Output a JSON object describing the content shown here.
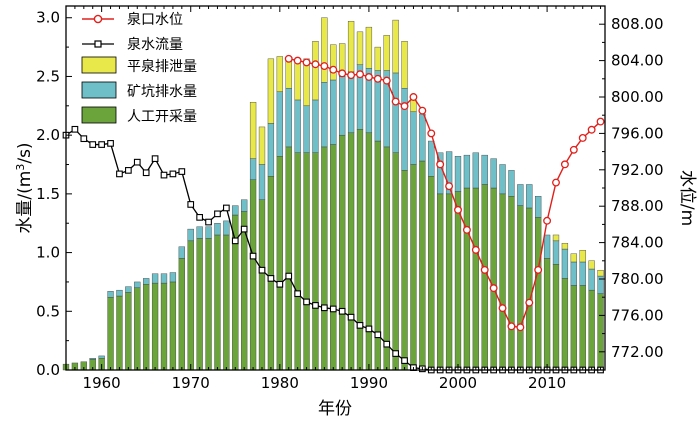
{
  "chart_data": {
    "type": "bar+line",
    "xlabel": "年份",
    "ylabel": "水量/(m³/s)",
    "ylabel_parts": {
      "pre": "水量/(m",
      "sup": "3",
      "post": "/s)"
    },
    "y2label": "水位/m",
    "xlim": [
      1956,
      2016.5
    ],
    "ylim": [
      0,
      3.1
    ],
    "y2lim": [
      770,
      810
    ],
    "x_ticks": [
      1960,
      1970,
      1980,
      1990,
      2000,
      2010
    ],
    "x_tick_labels": [
      "1960",
      "1970",
      "1980",
      "1990",
      "2000",
      "2010"
    ],
    "y_ticks": [
      0.0,
      0.5,
      1.0,
      1.5,
      2.0,
      2.5,
      3.0
    ],
    "y_tick_labels": [
      "0.0",
      "0.5",
      "1.0",
      "1.5",
      "2.0",
      "2.5",
      "3.0"
    ],
    "y2_ticks": [
      772,
      776,
      780,
      784,
      788,
      792,
      796,
      800,
      804,
      808
    ],
    "y2_tick_labels": [
      "772.00",
      "776.00",
      "780.00",
      "784.00",
      "788.00",
      "792.00",
      "796.00",
      "800.00",
      "804.00",
      "808.00"
    ],
    "legend": [
      {
        "name": "泉口水位",
        "kind": "line-circle",
        "color": "#e0201b"
      },
      {
        "name": "泉水流量",
        "kind": "line-square",
        "color": "#000000"
      },
      {
        "name": "平泉排泄量",
        "kind": "bar",
        "color": "#e8e84a"
      },
      {
        "name": "矿坑排水量",
        "kind": "bar",
        "color": "#6fbfc9"
      },
      {
        "name": "人工开采量",
        "kind": "bar",
        "color": "#6aa43a"
      }
    ],
    "legend_position": "top-left",
    "colors": {
      "artificial": "#6aa43a",
      "mine": "#6fbfc9",
      "spring_discharge": "#e8e84a",
      "flow_line": "#000000",
      "level_line": "#e0201b"
    },
    "years": [
      1956,
      1957,
      1958,
      1959,
      1960,
      1961,
      1962,
      1963,
      1964,
      1965,
      1966,
      1967,
      1968,
      1969,
      1970,
      1971,
      1972,
      1973,
      1974,
      1975,
      1976,
      1977,
      1978,
      1979,
      1980,
      1981,
      1982,
      1983,
      1984,
      1985,
      1986,
      1987,
      1988,
      1989,
      1990,
      1991,
      1992,
      1993,
      1994,
      1995,
      1996,
      1997,
      1998,
      1999,
      2000,
      2001,
      2002,
      2003,
      2004,
      2005,
      2006,
      2007,
      2008,
      2009,
      2010,
      2011,
      2012,
      2013,
      2014,
      2015,
      2016
    ],
    "series": [
      {
        "name": "人工开采量",
        "values": [
          0.05,
          0.06,
          0.07,
          0.09,
          0.1,
          0.62,
          0.63,
          0.66,
          0.7,
          0.73,
          0.74,
          0.74,
          0.75,
          0.95,
          1.1,
          1.12,
          1.12,
          1.15,
          1.15,
          1.32,
          1.35,
          1.62,
          1.45,
          1.65,
          1.82,
          1.9,
          1.85,
          1.85,
          1.85,
          1.9,
          1.92,
          2.0,
          2.02,
          2.05,
          2.02,
          1.95,
          1.9,
          1.85,
          1.7,
          1.75,
          1.78,
          1.65,
          1.5,
          1.5,
          1.52,
          1.55,
          1.55,
          1.58,
          1.55,
          1.5,
          1.48,
          1.4,
          1.38,
          1.3,
          0.95,
          0.9,
          0.78,
          0.72,
          0.72,
          0.68,
          0.65
        ]
      },
      {
        "name": "矿坑排水量",
        "values": [
          0.0,
          0.0,
          0.0,
          0.01,
          0.02,
          0.05,
          0.05,
          0.05,
          0.05,
          0.05,
          0.08,
          0.08,
          0.08,
          0.1,
          0.1,
          0.1,
          0.1,
          0.1,
          0.12,
          0.08,
          0.1,
          0.18,
          0.3,
          0.45,
          0.55,
          0.5,
          0.45,
          0.4,
          0.45,
          0.55,
          0.55,
          0.5,
          0.52,
          0.55,
          0.55,
          0.6,
          0.65,
          0.68,
          0.7,
          0.45,
          0.4,
          0.3,
          0.35,
          0.36,
          0.3,
          0.28,
          0.3,
          0.25,
          0.25,
          0.25,
          0.22,
          0.18,
          0.2,
          0.18,
          0.2,
          0.2,
          0.25,
          0.2,
          0.2,
          0.18,
          0.15
        ]
      },
      {
        "name": "平泉排泄量",
        "values": [
          0.0,
          0.0,
          0.0,
          0.0,
          0.0,
          0.0,
          0.0,
          0.0,
          0.0,
          0.0,
          0.0,
          0.0,
          0.0,
          0.0,
          0.0,
          0.0,
          0.0,
          0.0,
          0.0,
          0.0,
          0.0,
          0.48,
          0.32,
          0.55,
          0.3,
          0.25,
          0.35,
          0.4,
          0.5,
          0.55,
          0.3,
          0.28,
          0.43,
          0.28,
          0.35,
          0.2,
          0.3,
          0.45,
          0.4,
          0.1,
          0.0,
          0.0,
          0.0,
          0.0,
          0.0,
          0.0,
          0.0,
          0.0,
          0.0,
          0.0,
          0.0,
          0.0,
          0.0,
          0.0,
          0.0,
          0.05,
          0.05,
          0.07,
          0.1,
          0.07,
          0.05
        ]
      },
      {
        "name": "泉水流量",
        "years": [
          1956,
          1957,
          1958,
          1959,
          1960,
          1961,
          1962,
          1963,
          1964,
          1965,
          1966,
          1967,
          1968,
          1969,
          1970,
          1971,
          1972,
          1973,
          1974,
          1975,
          1976,
          1977,
          1978,
          1979,
          1980,
          1981,
          1982,
          1983,
          1984,
          1985,
          1986,
          1987,
          1988,
          1989,
          1990,
          1991,
          1992,
          1993,
          1994,
          1995,
          1996,
          1997,
          1998,
          1999,
          2000,
          2001,
          2002,
          2003,
          2004,
          2005,
          2006,
          2007,
          2008,
          2009,
          2010,
          2011,
          2012,
          2013,
          2014,
          2015,
          2016
        ],
        "values": [
          2.0,
          2.05,
          1.97,
          1.92,
          1.92,
          1.93,
          1.67,
          1.7,
          1.77,
          1.68,
          1.8,
          1.66,
          1.67,
          1.69,
          1.41,
          1.3,
          1.26,
          1.33,
          1.38,
          1.1,
          1.2,
          0.97,
          0.85,
          0.78,
          0.73,
          0.8,
          0.65,
          0.58,
          0.55,
          0.53,
          0.52,
          0.5,
          0.45,
          0.38,
          0.35,
          0.3,
          0.22,
          0.14,
          0.08,
          0.02,
          0.01,
          0.0,
          0.0,
          0.0,
          0.0,
          0.0,
          0.0,
          0.0,
          0.0,
          0.0,
          0.0,
          0.0,
          0.0,
          0.0,
          0.0,
          0.0,
          0.0,
          0.0,
          0.0,
          0.0,
          0.0
        ]
      },
      {
        "name": "泉口水位",
        "axis": "right",
        "years": [
          1981,
          1982,
          1983,
          1984,
          1985,
          1986,
          1987,
          1988,
          1989,
          1990,
          1991,
          1992,
          1993,
          1994,
          1995,
          1996,
          1997,
          1998,
          1999,
          2000,
          2001,
          2002,
          2003,
          2004,
          2005,
          2006,
          2007,
          2008,
          2009,
          2010,
          2011,
          2012,
          2013,
          2014,
          2015,
          2016
        ],
        "values": [
          804.2,
          804.0,
          803.8,
          803.6,
          803.4,
          803.0,
          802.6,
          802.4,
          802.5,
          802.2,
          802.0,
          801.8,
          799.5,
          799.0,
          800.0,
          798.5,
          796.0,
          792.6,
          790.2,
          787.6,
          785.4,
          783.2,
          781.0,
          779.0,
          776.8,
          774.8,
          774.7,
          777.4,
          781.0,
          786.4,
          790.6,
          792.6,
          794.2,
          795.5,
          796.4,
          797.3
        ]
      }
    ]
  }
}
